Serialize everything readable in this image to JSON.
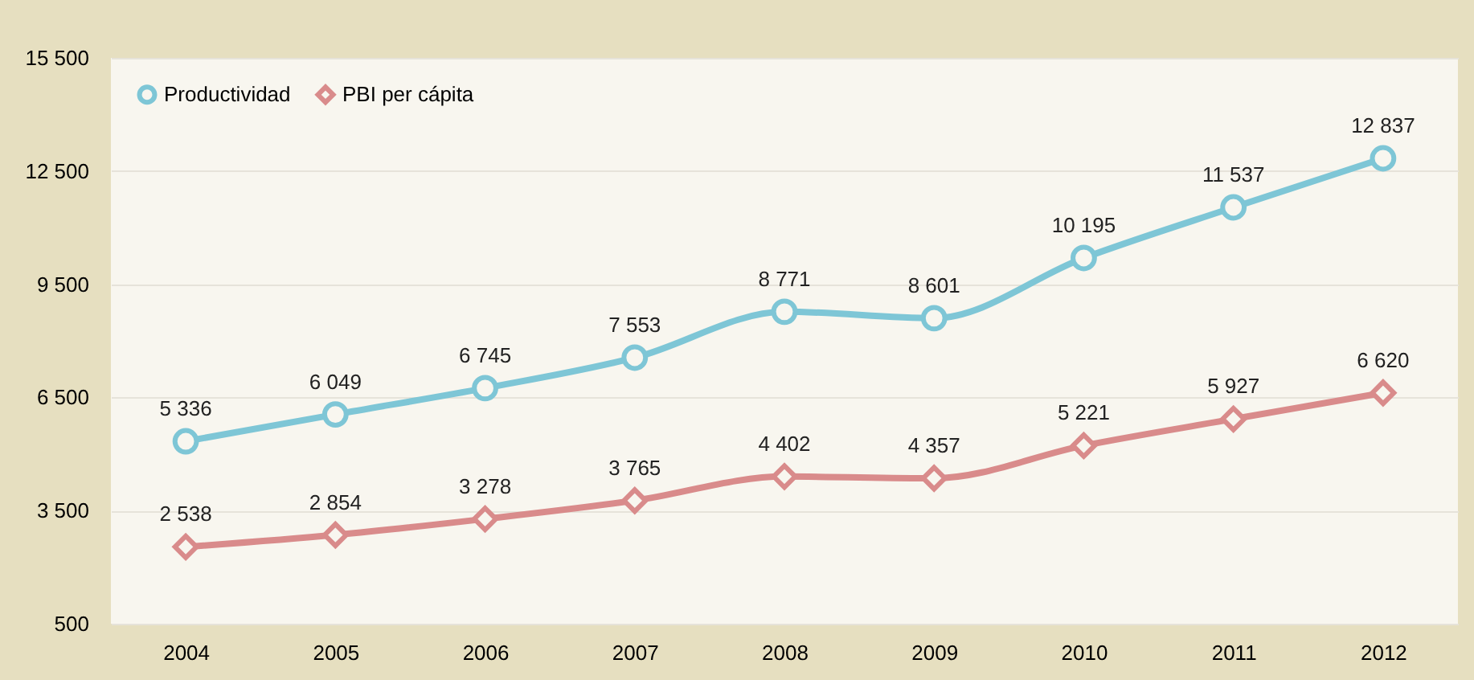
{
  "chart_data": {
    "type": "line",
    "categories": [
      "2004",
      "2005",
      "2006",
      "2007",
      "2008",
      "2009",
      "2010",
      "2011",
      "2012"
    ],
    "series": [
      {
        "name": "Productividad",
        "color": "#7ec6d6",
        "marker": "circle",
        "values": [
          5336,
          6049,
          6745,
          7553,
          8771,
          8601,
          10195,
          11537,
          12837
        ],
        "value_labels": [
          "5 336",
          "6 049",
          "6 745",
          "7 553",
          "8 771",
          "8 601",
          "10 195",
          "11 537",
          "12 837"
        ]
      },
      {
        "name": "PBI per cápita",
        "color": "#d98b8b",
        "marker": "diamond",
        "values": [
          2538,
          2854,
          3278,
          3765,
          4402,
          4357,
          5221,
          5927,
          6620
        ],
        "value_labels": [
          "2 538",
          "2 854",
          "3 278",
          "3 765",
          "4 402",
          "4 357",
          "5 221",
          "5 927",
          "6 620"
        ]
      }
    ],
    "ylim": [
      500,
      15500
    ],
    "yticks": [
      {
        "value": 500,
        "label": "500"
      },
      {
        "value": 3500,
        "label": "3 500"
      },
      {
        "value": 6500,
        "label": "6 500"
      },
      {
        "value": 9500,
        "label": "9 500"
      },
      {
        "value": 12500,
        "label": "12 500"
      },
      {
        "value": 15500,
        "label": "15 500"
      }
    ],
    "grid": "y",
    "legend": "top left",
    "line_style": "solid"
  }
}
